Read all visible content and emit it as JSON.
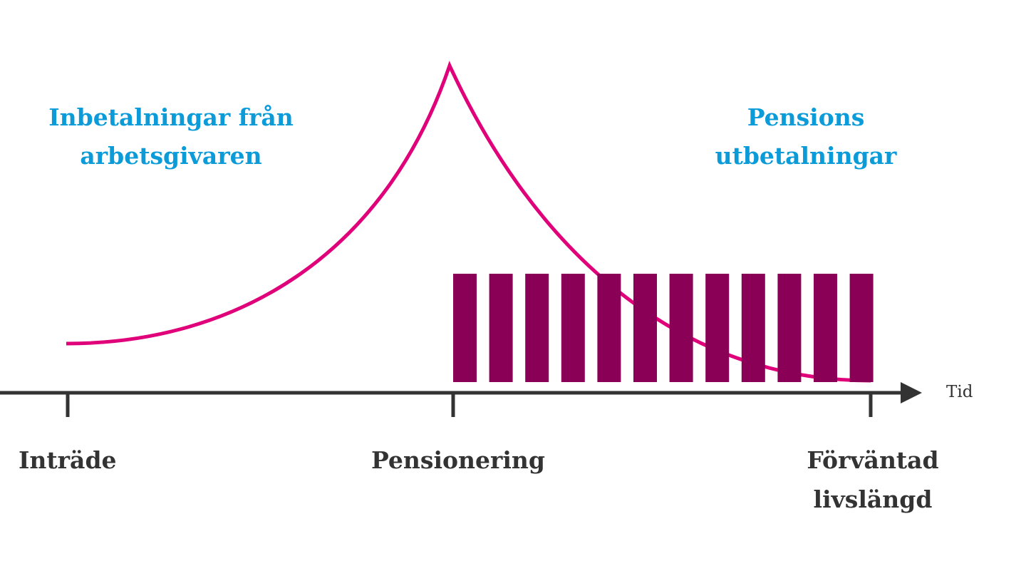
{
  "contributions_label": [
    "Inbetalningar från",
    "arbetsgivaren"
  ],
  "payouts_label": [
    "Pensions",
    "utbetalningar"
  ],
  "axis_label": "Tid",
  "milestones": [
    [
      "Inträde"
    ],
    [
      "Pensionering"
    ],
    [
      "Förväntad",
      "livslängd"
    ]
  ]
}
